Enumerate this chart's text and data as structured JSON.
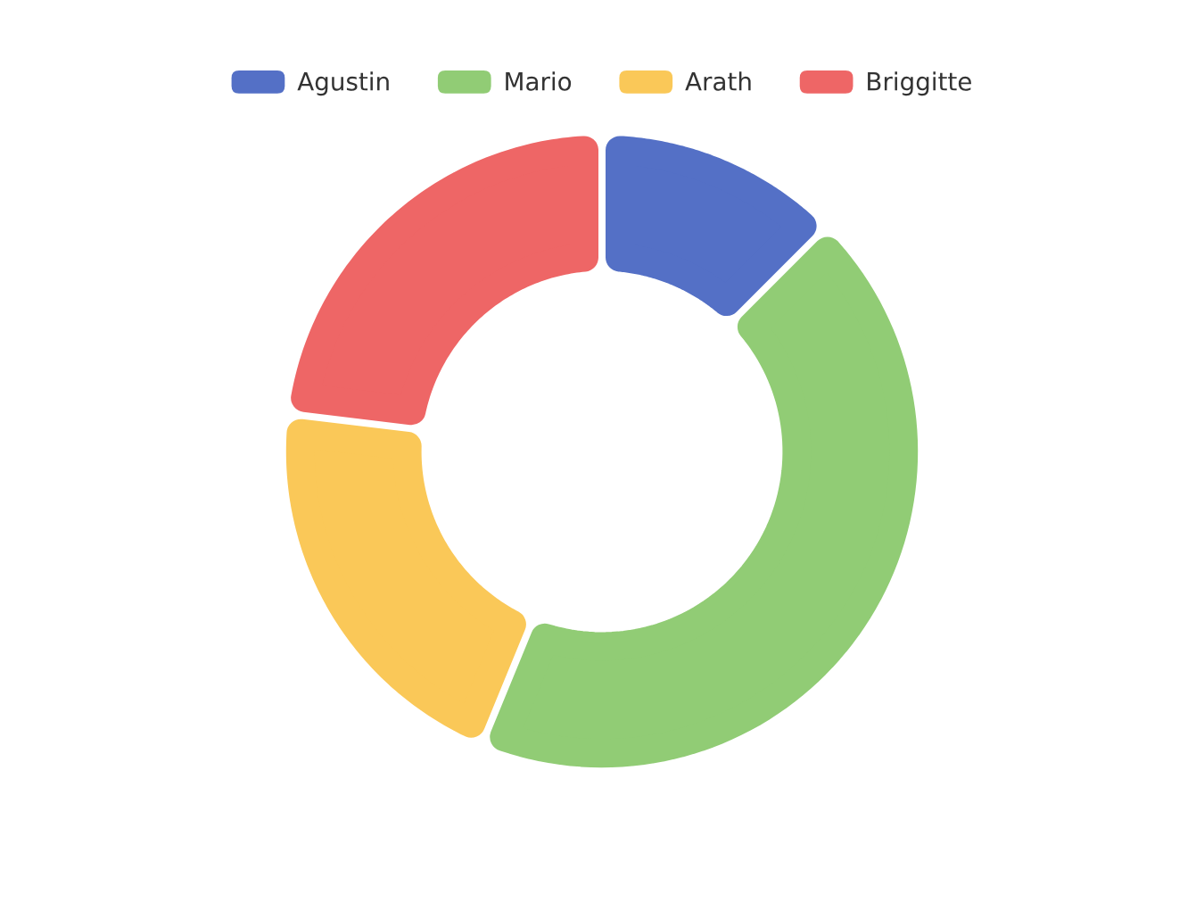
{
  "chart_data": {
    "type": "donut",
    "categories": [
      "Agustin",
      "Mario",
      "Arath",
      "Briggitte"
    ],
    "values": [
      12.5,
      43.7,
      20.7,
      23.1
    ],
    "colors": [
      "#5470c6",
      "#91cc75",
      "#fac858",
      "#ee6666"
    ],
    "legend": "top"
  }
}
